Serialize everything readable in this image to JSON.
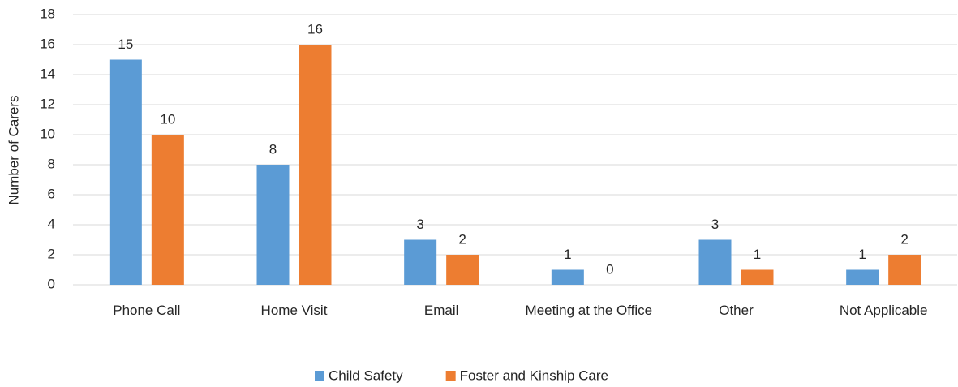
{
  "chart_data": {
    "type": "bar",
    "y_label": "Number of Carers",
    "categories": [
      "Phone Call",
      "Home Visit",
      "Email",
      "Meeting at the Office",
      "Other",
      "Not Applicable"
    ],
    "series": [
      {
        "name": "Child Safety",
        "color": "#5b9bd5",
        "values": [
          15,
          8,
          3,
          1,
          3,
          1
        ]
      },
      {
        "name": "Foster and Kinship Care",
        "color": "#ed7d31",
        "values": [
          10,
          16,
          2,
          0,
          1,
          2
        ]
      }
    ],
    "ylim": [
      0,
      18
    ],
    "yticks": [
      0,
      2,
      4,
      6,
      8,
      10,
      12,
      14,
      16,
      18
    ],
    "grid": true,
    "legend": "bottom"
  }
}
